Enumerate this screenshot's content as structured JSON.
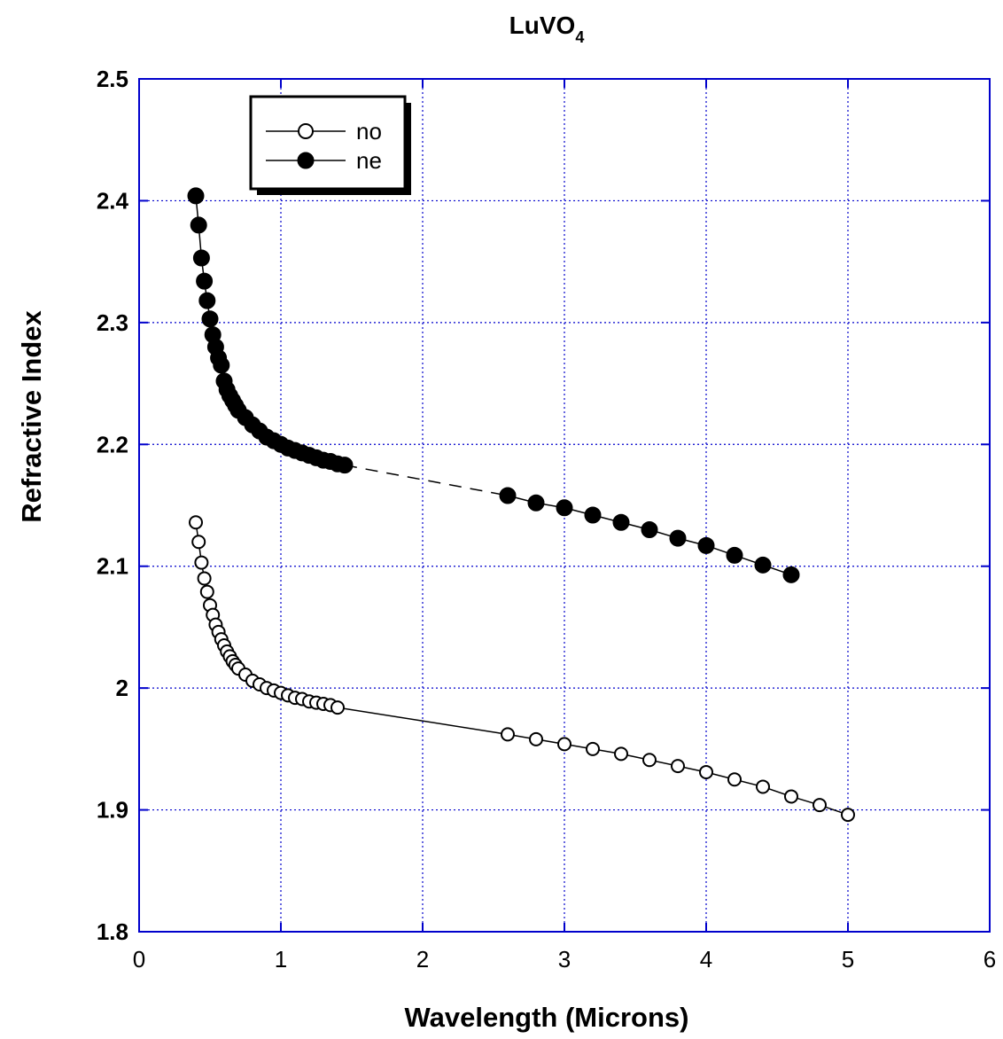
{
  "chart_data": {
    "type": "scatter",
    "title_main": "LuVO",
    "title_sub": "4",
    "xlabel": "Wavelength (Microns)",
    "ylabel": "Refractive Index",
    "xlim": [
      0,
      6
    ],
    "ylim": [
      1.8,
      2.5
    ],
    "xticks": [
      "0",
      "1",
      "2",
      "3",
      "4",
      "5",
      "6"
    ],
    "yticks": [
      "1.8",
      "1.9",
      "2",
      "2.1",
      "2.2",
      "2.3",
      "2.4",
      "2.5"
    ],
    "grid": true,
    "legend_position": "top-left",
    "axis_color": "#0000cc",
    "grid_color": "#0000cc",
    "series": [
      {
        "name": "no",
        "marker": "open-circle",
        "x": [
          0.4,
          0.42,
          0.44,
          0.46,
          0.48,
          0.5,
          0.52,
          0.54,
          0.56,
          0.58,
          0.6,
          0.62,
          0.64,
          0.66,
          0.68,
          0.7,
          0.75,
          0.8,
          0.85,
          0.9,
          0.95,
          1.0,
          1.05,
          1.1,
          1.15,
          1.2,
          1.25,
          1.3,
          1.35,
          1.4,
          2.6,
          2.8,
          3.0,
          3.2,
          3.4,
          3.6,
          3.8,
          4.0,
          4.2,
          4.4,
          4.6,
          4.8,
          5.0
        ],
        "y": [
          2.136,
          2.12,
          2.103,
          2.09,
          2.079,
          2.068,
          2.06,
          2.052,
          2.046,
          2.04,
          2.035,
          2.03,
          2.026,
          2.022,
          2.019,
          2.016,
          2.011,
          2.006,
          2.003,
          2.0,
          1.998,
          1.996,
          1.994,
          1.992,
          1.991,
          1.989,
          1.988,
          1.987,
          1.986,
          1.984,
          1.962,
          1.958,
          1.954,
          1.95,
          1.946,
          1.941,
          1.936,
          1.931,
          1.925,
          1.919,
          1.911,
          1.904,
          1.896
        ]
      },
      {
        "name": "ne",
        "marker": "filled-circle",
        "x": [
          0.4,
          0.42,
          0.44,
          0.46,
          0.48,
          0.5,
          0.52,
          0.54,
          0.56,
          0.58,
          0.6,
          0.62,
          0.64,
          0.66,
          0.68,
          0.7,
          0.75,
          0.8,
          0.85,
          0.9,
          0.95,
          1.0,
          1.05,
          1.1,
          1.15,
          1.2,
          1.25,
          1.3,
          1.35,
          1.4,
          1.45,
          2.6,
          2.8,
          3.0,
          3.2,
          3.4,
          3.6,
          3.8,
          4.0,
          4.2,
          4.4,
          4.6
        ],
        "y": [
          2.404,
          2.38,
          2.353,
          2.334,
          2.318,
          2.303,
          2.29,
          2.28,
          2.271,
          2.265,
          2.252,
          2.245,
          2.24,
          2.236,
          2.232,
          2.228,
          2.222,
          2.216,
          2.211,
          2.206,
          2.203,
          2.2,
          2.197,
          2.195,
          2.193,
          2.191,
          2.189,
          2.187,
          2.186,
          2.184,
          2.183,
          2.158,
          2.152,
          2.148,
          2.142,
          2.136,
          2.13,
          2.123,
          2.117,
          2.109,
          2.101,
          2.093
        ]
      }
    ]
  }
}
